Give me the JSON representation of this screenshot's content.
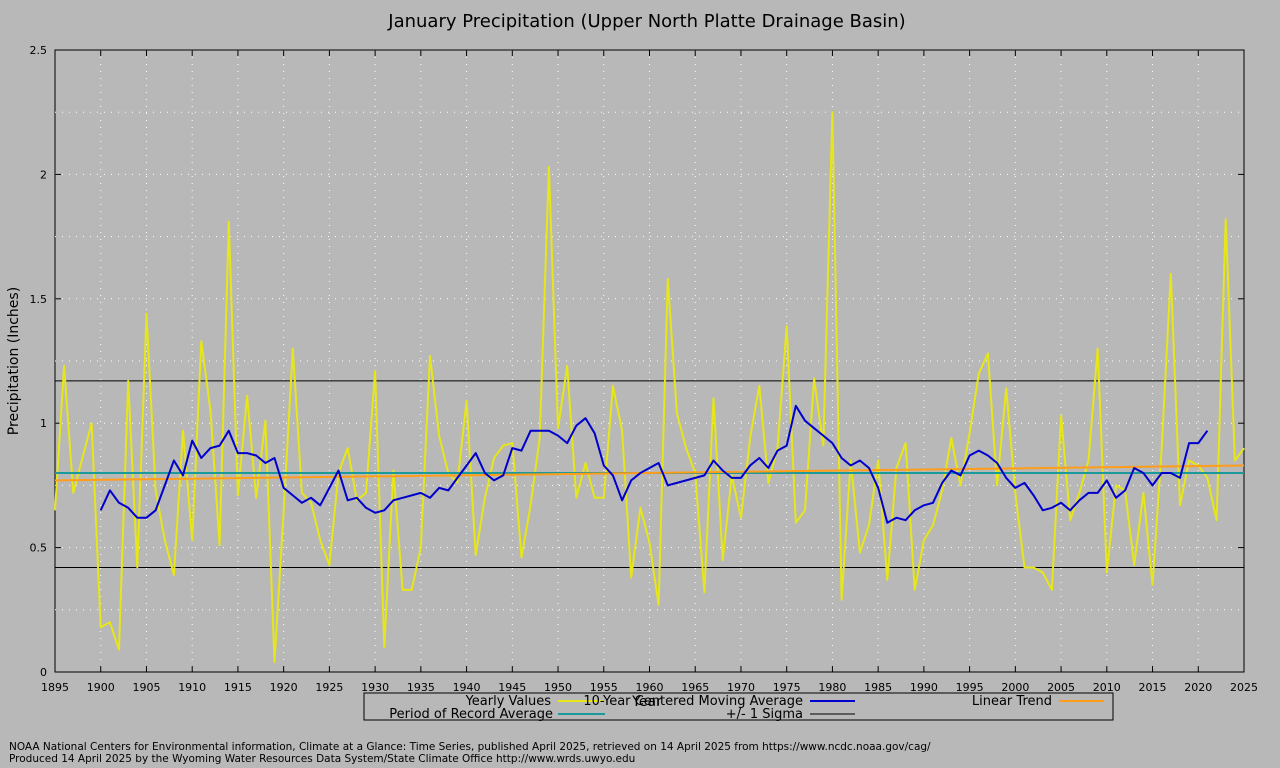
{
  "chart_data": {
    "type": "line",
    "title": "January Precipitation (Upper North Platte Drainage Basin)",
    "xlabel": "Year",
    "ylabel": "Precipitation (Inches)",
    "xlim": [
      1895,
      2025
    ],
    "ylim": [
      0,
      2.5
    ],
    "xticks": [
      1895,
      1900,
      1905,
      1910,
      1915,
      1920,
      1925,
      1930,
      1935,
      1940,
      1945,
      1950,
      1955,
      1960,
      1965,
      1970,
      1975,
      1980,
      1985,
      1990,
      1995,
      2000,
      2005,
      2010,
      2015,
      2020,
      2025
    ],
    "yticks": [
      0,
      0.5,
      1,
      1.5,
      2,
      2.5
    ],
    "ytick_labels": [
      "0",
      "0.5",
      "1",
      "1.5",
      "2",
      "2.5"
    ],
    "grid": true,
    "legend_position": "bottom",
    "colors": {
      "yearly": "#e6e619",
      "moving_average": "#0000cc",
      "trend": "#ff9d1a",
      "period_average": "#1a9a9a",
      "sigma": "#000000",
      "plot_background": "#b8b8b8",
      "grid": "#ffffff"
    },
    "series": [
      {
        "name": "Yearly Values",
        "x": [
          1895,
          1896,
          1897,
          1898,
          1899,
          1900,
          1901,
          1902,
          1903,
          1904,
          1905,
          1906,
          1907,
          1908,
          1909,
          1910,
          1911,
          1912,
          1913,
          1914,
          1915,
          1916,
          1917,
          1918,
          1919,
          1920,
          1921,
          1922,
          1923,
          1924,
          1925,
          1926,
          1927,
          1928,
          1929,
          1930,
          1931,
          1932,
          1933,
          1934,
          1935,
          1936,
          1937,
          1938,
          1939,
          1940,
          1941,
          1942,
          1943,
          1944,
          1945,
          1946,
          1947,
          1948,
          1949,
          1950,
          1951,
          1952,
          1953,
          1954,
          1955,
          1956,
          1957,
          1958,
          1959,
          1960,
          1961,
          1962,
          1963,
          1964,
          1965,
          1966,
          1967,
          1968,
          1969,
          1970,
          1971,
          1972,
          1973,
          1974,
          1975,
          1976,
          1977,
          1978,
          1979,
          1980,
          1981,
          1982,
          1983,
          1984,
          1985,
          1986,
          1987,
          1988,
          1989,
          1990,
          1991,
          1992,
          1993,
          1994,
          1995,
          1996,
          1997,
          1998,
          1999,
          2000,
          2001,
          2002,
          2003,
          2004,
          2005,
          2006,
          2007,
          2008,
          2009,
          2010,
          2011,
          2012,
          2013,
          2014,
          2015,
          2016,
          2017,
          2018,
          2019,
          2020,
          2021,
          2022,
          2023,
          2024,
          2025
        ],
        "values": [
          0.65,
          1.23,
          0.72,
          0.86,
          1.0,
          0.18,
          0.2,
          0.09,
          1.17,
          0.42,
          1.44,
          0.73,
          0.53,
          0.39,
          0.97,
          0.53,
          1.33,
          1.05,
          0.51,
          1.81,
          0.71,
          1.11,
          0.7,
          1.01,
          0.04,
          0.65,
          1.3,
          0.72,
          0.68,
          0.53,
          0.43,
          0.8,
          0.9,
          0.69,
          0.72,
          1.21,
          0.1,
          0.81,
          0.33,
          0.33,
          0.5,
          1.27,
          0.95,
          0.8,
          0.76,
          1.09,
          0.47,
          0.7,
          0.86,
          0.91,
          0.92,
          0.46,
          0.67,
          0.94,
          2.03,
          0.98,
          1.23,
          0.7,
          0.84,
          0.7,
          0.7,
          1.15,
          0.97,
          0.38,
          0.66,
          0.52,
          0.27,
          1.58,
          1.04,
          0.9,
          0.8,
          0.32,
          1.1,
          0.45,
          0.79,
          0.62,
          0.94,
          1.15,
          0.76,
          0.9,
          1.39,
          0.6,
          0.65,
          1.18,
          0.91,
          2.25,
          0.29,
          0.85,
          0.48,
          0.59,
          0.85,
          0.37,
          0.82,
          0.92,
          0.33,
          0.53,
          0.59,
          0.73,
          0.94,
          0.75,
          0.96,
          1.2,
          1.28,
          0.75,
          1.14,
          0.72,
          0.42,
          0.42,
          0.4,
          0.33,
          1.03,
          0.61,
          0.72,
          0.85,
          1.3,
          0.4,
          0.75,
          0.73,
          0.43,
          0.72,
          0.35,
          0.9,
          1.6,
          0.67,
          0.85,
          0.83,
          0.78,
          0.61,
          1.82,
          0.85,
          0.9
        ]
      },
      {
        "name": "10-Year Centered Moving Average",
        "x": [
          1900,
          1901,
          1902,
          1903,
          1904,
          1905,
          1906,
          1907,
          1908,
          1909,
          1910,
          1911,
          1912,
          1913,
          1914,
          1915,
          1916,
          1917,
          1918,
          1919,
          1920,
          1921,
          1922,
          1923,
          1924,
          1925,
          1926,
          1927,
          1928,
          1929,
          1930,
          1931,
          1932,
          1933,
          1934,
          1935,
          1936,
          1937,
          1938,
          1939,
          1940,
          1941,
          1942,
          1943,
          1944,
          1945,
          1946,
          1947,
          1948,
          1949,
          1950,
          1951,
          1952,
          1953,
          1954,
          1955,
          1956,
          1957,
          1958,
          1959,
          1960,
          1961,
          1962,
          1963,
          1964,
          1965,
          1966,
          1967,
          1968,
          1969,
          1970,
          1971,
          1972,
          1973,
          1974,
          1975,
          1976,
          1977,
          1978,
          1979,
          1980,
          1981,
          1982,
          1983,
          1984,
          1985,
          1986,
          1987,
          1988,
          1989,
          1990,
          1991,
          1992,
          1993,
          1994,
          1995,
          1996,
          1997,
          1998,
          1999,
          2000,
          2001,
          2002,
          2003,
          2004,
          2005,
          2006,
          2007,
          2008,
          2009,
          2010,
          2011,
          2012,
          2013,
          2014,
          2015,
          2016,
          2017,
          2018,
          2019,
          2020,
          2021
        ],
        "values": [
          0.65,
          0.73,
          0.68,
          0.66,
          0.62,
          0.62,
          0.65,
          0.75,
          0.85,
          0.79,
          0.93,
          0.86,
          0.9,
          0.91,
          0.97,
          0.88,
          0.88,
          0.87,
          0.84,
          0.86,
          0.74,
          0.71,
          0.68,
          0.7,
          0.67,
          0.74,
          0.81,
          0.69,
          0.7,
          0.66,
          0.64,
          0.65,
          0.69,
          0.7,
          0.71,
          0.72,
          0.7,
          0.74,
          0.73,
          0.78,
          0.83,
          0.88,
          0.8,
          0.77,
          0.79,
          0.9,
          0.89,
          0.97,
          0.97,
          0.97,
          0.95,
          0.92,
          0.99,
          1.02,
          0.96,
          0.83,
          0.79,
          0.69,
          0.77,
          0.8,
          0.82,
          0.84,
          0.75,
          0.76,
          0.77,
          0.78,
          0.79,
          0.85,
          0.81,
          0.78,
          0.78,
          0.83,
          0.86,
          0.82,
          0.89,
          0.91,
          1.07,
          1.01,
          0.98,
          0.95,
          0.92,
          0.86,
          0.83,
          0.85,
          0.82,
          0.74,
          0.6,
          0.62,
          0.61,
          0.65,
          0.67,
          0.68,
          0.76,
          0.81,
          0.79,
          0.87,
          0.89,
          0.87,
          0.84,
          0.78,
          0.74,
          0.76,
          0.71,
          0.65,
          0.66,
          0.68,
          0.65,
          0.69,
          0.72,
          0.72,
          0.77,
          0.7,
          0.73,
          0.82,
          0.8,
          0.75,
          0.8,
          0.8,
          0.78,
          0.92,
          0.92,
          0.97
        ]
      },
      {
        "name": "Linear Trend",
        "x": [
          1895,
          2025
        ],
        "values": [
          0.77,
          0.83
        ]
      },
      {
        "name": "Period of Record Average",
        "x": [
          1895,
          2025
        ],
        "values": [
          0.8,
          0.8
        ]
      },
      {
        "name": "+/- 1 Sigma",
        "upper": 1.17,
        "lower": 0.42
      }
    ]
  },
  "footer": {
    "line1": "NOAA National Centers for Environmental information, Climate at a Glance: Time Series, published April 2025, retrieved on 14 April 2025 from https://www.ncdc.noaa.gov/cag/",
    "line2": "Produced 14 April 2025 by the Wyoming Water Resources Data System/State Climate Office http://www.wrds.uwyo.edu"
  }
}
